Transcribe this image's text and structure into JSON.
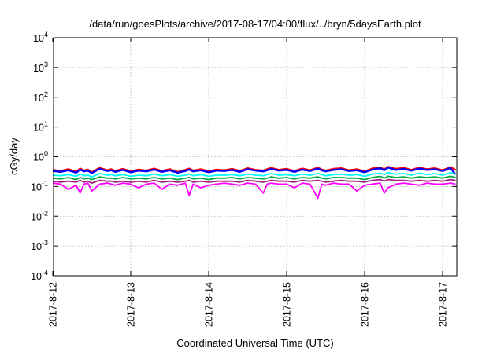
{
  "chart_data": {
    "type": "line",
    "title": "/data/run/goesPlots/archive/2017-08-17/04:00/flux/../bryn/5daysEarth.plot",
    "xlabel": "Coordinated Universal Time (UTC)",
    "ylabel": "cGy/day",
    "y_scale": "log",
    "ylim": [
      0.0001,
      10000
    ],
    "xlim": [
      "2017-08-12 00:00",
      "2017-08-17 04:00"
    ],
    "grid": true,
    "legend": "none",
    "x_ticks": [
      "2017-8-12",
      "2017-8-13",
      "2017-8-14",
      "2017-8-15",
      "2017-8-16",
      "2017-8-17"
    ],
    "y_ticks": [
      {
        "base": "10",
        "exp": "-4"
      },
      {
        "base": "10",
        "exp": "-3"
      },
      {
        "base": "10",
        "exp": "-2"
      },
      {
        "base": "10",
        "exp": "-1"
      },
      {
        "base": "10",
        "exp": "0"
      },
      {
        "base": "10",
        "exp": "1"
      },
      {
        "base": "10",
        "exp": "2"
      },
      {
        "base": "10",
        "exp": "3"
      },
      {
        "base": "10",
        "exp": "4"
      }
    ],
    "sample_days": [
      0,
      0.1,
      0.2,
      0.3,
      0.35,
      0.4,
      0.45,
      0.5,
      0.6,
      0.7,
      0.75,
      0.8,
      0.9,
      1.0,
      1.1,
      1.2,
      1.3,
      1.4,
      1.5,
      1.6,
      1.7,
      1.75,
      1.8,
      1.9,
      2.0,
      2.1,
      2.2,
      2.3,
      2.4,
      2.5,
      2.6,
      2.7,
      2.75,
      2.8,
      2.9,
      3.0,
      3.1,
      3.2,
      3.3,
      3.4,
      3.45,
      3.5,
      3.6,
      3.7,
      3.8,
      3.9,
      4.0,
      4.1,
      4.2,
      4.25,
      4.3,
      4.4,
      4.5,
      4.6,
      4.7,
      4.8,
      4.9,
      5.0,
      5.1,
      5.167
    ],
    "series": [
      {
        "color": "#ff0000",
        "values": [
          0.36,
          0.33,
          0.38,
          0.31,
          0.4,
          0.34,
          0.37,
          0.3,
          0.42,
          0.35,
          0.38,
          0.33,
          0.39,
          0.32,
          0.37,
          0.34,
          0.4,
          0.33,
          0.38,
          0.31,
          0.36,
          0.4,
          0.34,
          0.38,
          0.32,
          0.37,
          0.35,
          0.39,
          0.33,
          0.41,
          0.36,
          0.34,
          0.38,
          0.42,
          0.36,
          0.39,
          0.33,
          0.4,
          0.35,
          0.43,
          0.37,
          0.34,
          0.39,
          0.41,
          0.35,
          0.38,
          0.32,
          0.4,
          0.44,
          0.37,
          0.46,
          0.39,
          0.42,
          0.36,
          0.43,
          0.38,
          0.41,
          0.35,
          0.45,
          0.36
        ]
      },
      {
        "color": "#0000ff",
        "values": [
          0.33,
          0.31,
          0.35,
          0.29,
          0.37,
          0.32,
          0.34,
          0.28,
          0.39,
          0.33,
          0.35,
          0.31,
          0.36,
          0.3,
          0.34,
          0.32,
          0.37,
          0.31,
          0.35,
          0.29,
          0.33,
          0.37,
          0.32,
          0.35,
          0.3,
          0.34,
          0.33,
          0.36,
          0.31,
          0.38,
          0.34,
          0.32,
          0.35,
          0.39,
          0.34,
          0.36,
          0.31,
          0.37,
          0.33,
          0.4,
          0.35,
          0.32,
          0.36,
          0.38,
          0.33,
          0.35,
          0.3,
          0.37,
          0.41,
          0.35,
          0.43,
          0.36,
          0.39,
          0.34,
          0.4,
          0.36,
          0.38,
          0.33,
          0.42,
          0.25
        ]
      },
      {
        "color": "#00ffff",
        "values": [
          0.24,
          0.23,
          0.25,
          0.22,
          0.26,
          0.23,
          0.24,
          0.21,
          0.27,
          0.24,
          0.25,
          0.23,
          0.25,
          0.22,
          0.24,
          0.23,
          0.26,
          0.23,
          0.25,
          0.22,
          0.24,
          0.26,
          0.23,
          0.25,
          0.22,
          0.24,
          0.24,
          0.25,
          0.23,
          0.26,
          0.24,
          0.23,
          0.25,
          0.27,
          0.24,
          0.25,
          0.23,
          0.26,
          0.24,
          0.27,
          0.25,
          0.23,
          0.25,
          0.26,
          0.24,
          0.25,
          0.22,
          0.26,
          0.28,
          0.25,
          0.29,
          0.26,
          0.27,
          0.24,
          0.28,
          0.25,
          0.27,
          0.24,
          0.29,
          0.26
        ]
      },
      {
        "color": "#00aa44",
        "values": [
          0.19,
          0.18,
          0.2,
          0.17,
          0.2,
          0.18,
          0.19,
          0.17,
          0.21,
          0.19,
          0.19,
          0.18,
          0.2,
          0.18,
          0.19,
          0.18,
          0.2,
          0.18,
          0.19,
          0.17,
          0.19,
          0.2,
          0.18,
          0.19,
          0.17,
          0.19,
          0.19,
          0.2,
          0.18,
          0.2,
          0.19,
          0.18,
          0.19,
          0.21,
          0.19,
          0.2,
          0.18,
          0.2,
          0.19,
          0.21,
          0.19,
          0.18,
          0.2,
          0.2,
          0.19,
          0.19,
          0.17,
          0.2,
          0.22,
          0.19,
          0.22,
          0.2,
          0.21,
          0.19,
          0.21,
          0.2,
          0.21,
          0.19,
          0.22,
          0.2
        ]
      },
      {
        "color": "#a0207a",
        "values": [
          0.15,
          0.14,
          0.15,
          0.14,
          0.16,
          0.14,
          0.15,
          0.13,
          0.16,
          0.15,
          0.15,
          0.14,
          0.15,
          0.14,
          0.15,
          0.14,
          0.16,
          0.14,
          0.15,
          0.14,
          0.15,
          0.16,
          0.14,
          0.15,
          0.14,
          0.15,
          0.15,
          0.15,
          0.14,
          0.16,
          0.15,
          0.14,
          0.15,
          0.16,
          0.15,
          0.15,
          0.14,
          0.16,
          0.15,
          0.16,
          0.15,
          0.14,
          0.15,
          0.16,
          0.15,
          0.15,
          0.14,
          0.16,
          0.17,
          0.15,
          0.17,
          0.16,
          0.16,
          0.15,
          0.16,
          0.15,
          0.16,
          0.15,
          0.17,
          0.16
        ]
      },
      {
        "color": "#ff00ff",
        "values": [
          0.13,
          0.12,
          0.08,
          0.11,
          0.06,
          0.12,
          0.13,
          0.07,
          0.12,
          0.13,
          0.12,
          0.11,
          0.13,
          0.12,
          0.09,
          0.12,
          0.13,
          0.08,
          0.12,
          0.11,
          0.13,
          0.05,
          0.12,
          0.09,
          0.11,
          0.12,
          0.13,
          0.12,
          0.11,
          0.13,
          0.12,
          0.06,
          0.12,
          0.13,
          0.12,
          0.12,
          0.09,
          0.13,
          0.12,
          0.04,
          0.12,
          0.11,
          0.13,
          0.12,
          0.12,
          0.07,
          0.11,
          0.12,
          0.13,
          0.06,
          0.09,
          0.12,
          0.13,
          0.12,
          0.11,
          0.13,
          0.12,
          0.12,
          0.13,
          0.12
        ]
      }
    ]
  }
}
